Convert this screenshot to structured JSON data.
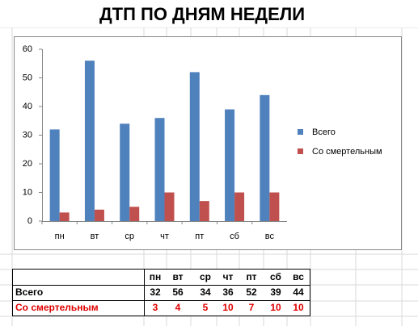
{
  "chart_data": {
    "type": "bar",
    "title": "ДТП ПО ДНЯМ НЕДЕЛИ",
    "categories": [
      "пн",
      "вт",
      "ср",
      "чт",
      "пт",
      "сб",
      "вс"
    ],
    "series": [
      {
        "name": "Всего",
        "color": "#4f81bd",
        "values": [
          32,
          56,
          34,
          36,
          52,
          39,
          44
        ]
      },
      {
        "name": "Со смертельным",
        "color": "#c0504d",
        "values": [
          3,
          4,
          5,
          10,
          7,
          10,
          10
        ]
      }
    ],
    "ylim": [
      0,
      60
    ],
    "yticks": [
      0,
      10,
      20,
      30,
      40,
      50,
      60
    ],
    "grid": false,
    "legend": "right"
  }
}
